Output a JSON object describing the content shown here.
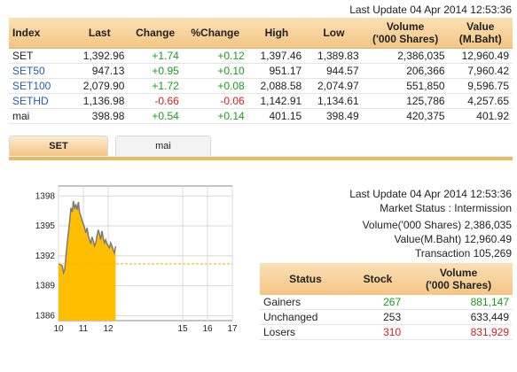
{
  "top_update": "Last Update 04 Apr 2014 12:53:36",
  "index_table": {
    "headers": [
      "Index",
      "Last",
      "Change",
      "%Change",
      "High",
      "Low",
      "Volume\n('000 Shares)",
      "Value\n(M.Baht)"
    ],
    "rows": [
      {
        "name": "SET",
        "last": "1,392.96",
        "change": "+1.74",
        "pct": "+0.12",
        "high": "1,397.46",
        "low": "1,389.83",
        "volume": "2,386,035",
        "value": "12,960.49",
        "dir": "pos",
        "link": false
      },
      {
        "name": "SET50",
        "last": "947.13",
        "change": "+0.95",
        "pct": "+0.10",
        "high": "951.17",
        "low": "944.57",
        "volume": "206,366",
        "value": "7,960.42",
        "dir": "pos",
        "link": true
      },
      {
        "name": "SET100",
        "last": "2,079.90",
        "change": "+1.72",
        "pct": "+0.08",
        "high": "2,088.58",
        "low": "2,074.97",
        "volume": "551,850",
        "value": "9,596.75",
        "dir": "pos",
        "link": true
      },
      {
        "name": "SETHD",
        "last": "1,136.98",
        "change": "-0.66",
        "pct": "-0.06",
        "high": "1,142.91",
        "low": "1,134.61",
        "volume": "125,786",
        "value": "4,257.65",
        "dir": "neg",
        "link": true
      },
      {
        "name": "mai",
        "last": "398.98",
        "change": "+0.54",
        "pct": "+0.14",
        "high": "401.15",
        "low": "398.49",
        "volume": "420,375",
        "value": "401.92",
        "dir": "pos",
        "link": false
      }
    ]
  },
  "tabs": [
    {
      "label": "SET",
      "active": true
    },
    {
      "label": "mai",
      "active": false
    }
  ],
  "market_status": {
    "last_update": "Last Update 04 Apr 2014 12:53:36",
    "status": "Market Status : Intermission",
    "volume": "Volume('000 Shares) 2,386,035",
    "value": "Value(M.Baht) 12,960.49",
    "transaction": "Transaction 105,269"
  },
  "stock_table": {
    "headers": [
      "Status",
      "Stock",
      "Volume\n('000 Shares)"
    ],
    "rows": [
      {
        "status": "Gainers",
        "stock": "267",
        "volume": "881,147",
        "dir": "pos"
      },
      {
        "status": "Unchanged",
        "stock": "253",
        "volume": "633,449",
        "dir": "none"
      },
      {
        "status": "Losers",
        "stock": "310",
        "volume": "831,929",
        "dir": "neg"
      }
    ]
  },
  "chart_data": {
    "type": "area",
    "y_ticks": [
      "1398",
      "1395",
      "1392",
      "1389",
      "1386"
    ],
    "x_ticks": [
      "10",
      "11",
      "12",
      "15",
      "16",
      "17"
    ],
    "ylim": [
      1385.5,
      1399
    ],
    "x_range": [
      10,
      17
    ],
    "prev_close": 1391.2,
    "x": [
      10.0,
      10.1,
      10.15,
      10.2,
      10.25,
      10.3,
      10.35,
      10.4,
      10.45,
      10.5,
      10.55,
      10.6,
      10.65,
      10.7,
      10.75,
      10.8,
      10.85,
      10.9,
      10.95,
      11.0,
      11.05,
      11.1,
      11.15,
      11.2,
      11.25,
      11.3,
      11.35,
      11.4,
      11.45,
      11.5,
      11.55,
      11.6,
      11.65,
      11.7,
      11.75,
      11.8,
      11.85,
      11.9,
      11.95,
      12.0,
      12.05,
      12.1,
      12.15,
      12.2,
      12.25,
      12.3
    ],
    "y": [
      1391.2,
      1391.1,
      1391.0,
      1390.3,
      1390.6,
      1392.0,
      1393.3,
      1394.4,
      1395.5,
      1396.8,
      1396.4,
      1397.5,
      1396.8,
      1397.1,
      1396.6,
      1397.4,
      1396.3,
      1396.0,
      1395.5,
      1395.2,
      1394.8,
      1394.3,
      1394.8,
      1394.0,
      1393.6,
      1393.2,
      1393.9,
      1393.5,
      1393.0,
      1393.3,
      1394.0,
      1394.6,
      1394.2,
      1393.6,
      1394.5,
      1393.8,
      1393.3,
      1393.6,
      1393.2,
      1393.0,
      1392.8,
      1393.3,
      1393.0,
      1392.6,
      1392.3,
      1392.96
    ],
    "colors": {
      "fill": "#ffbf00",
      "line": "#7a7a7a",
      "prev_close": "#ffaa00"
    }
  }
}
